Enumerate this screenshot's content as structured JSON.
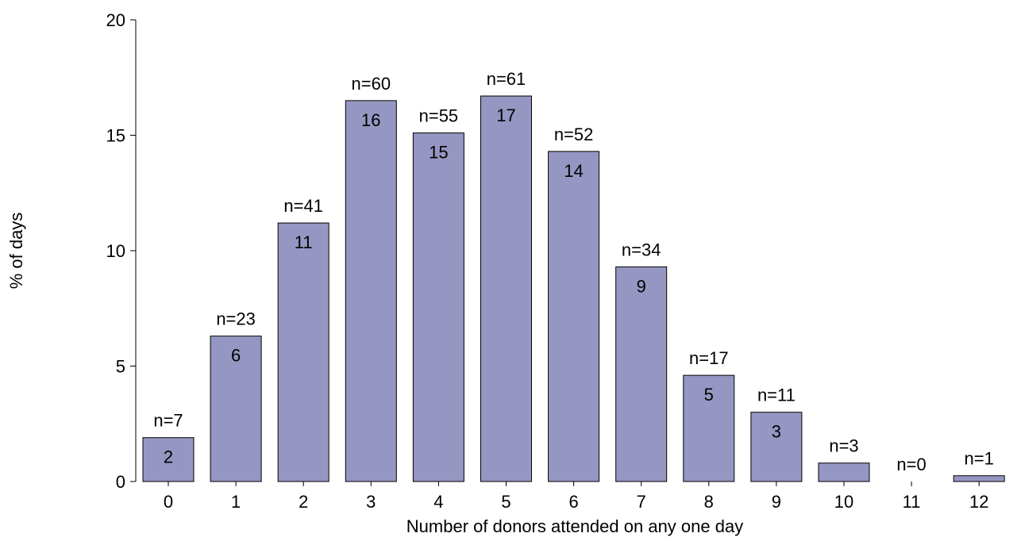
{
  "chart_data": {
    "type": "bar",
    "title": "",
    "xlabel": "Number of donors attended on any one day",
    "ylabel": "% of days",
    "ylim": [
      0,
      20
    ],
    "yticks": [
      0,
      5,
      10,
      15,
      20
    ],
    "grid": false,
    "bar_color": "#9696c2",
    "categories": [
      "0",
      "1",
      "2",
      "3",
      "4",
      "5",
      "6",
      "7",
      "8",
      "9",
      "10",
      "11",
      "12"
    ],
    "values": [
      1.9,
      6.3,
      11.2,
      16.5,
      15.1,
      16.7,
      14.3,
      9.3,
      4.6,
      3.0,
      0.8,
      0,
      0.25
    ],
    "bar_labels": [
      "2",
      "6",
      "11",
      "16",
      "15",
      "17",
      "14",
      "9",
      "5",
      "3",
      "",
      "",
      ""
    ],
    "n_labels": [
      "n=7",
      "n=23",
      "n=41",
      "n=60",
      "n=55",
      "n=61",
      "n=52",
      "n=34",
      "n=17",
      "n=11",
      "n=3",
      "n=0",
      "n=1"
    ]
  }
}
